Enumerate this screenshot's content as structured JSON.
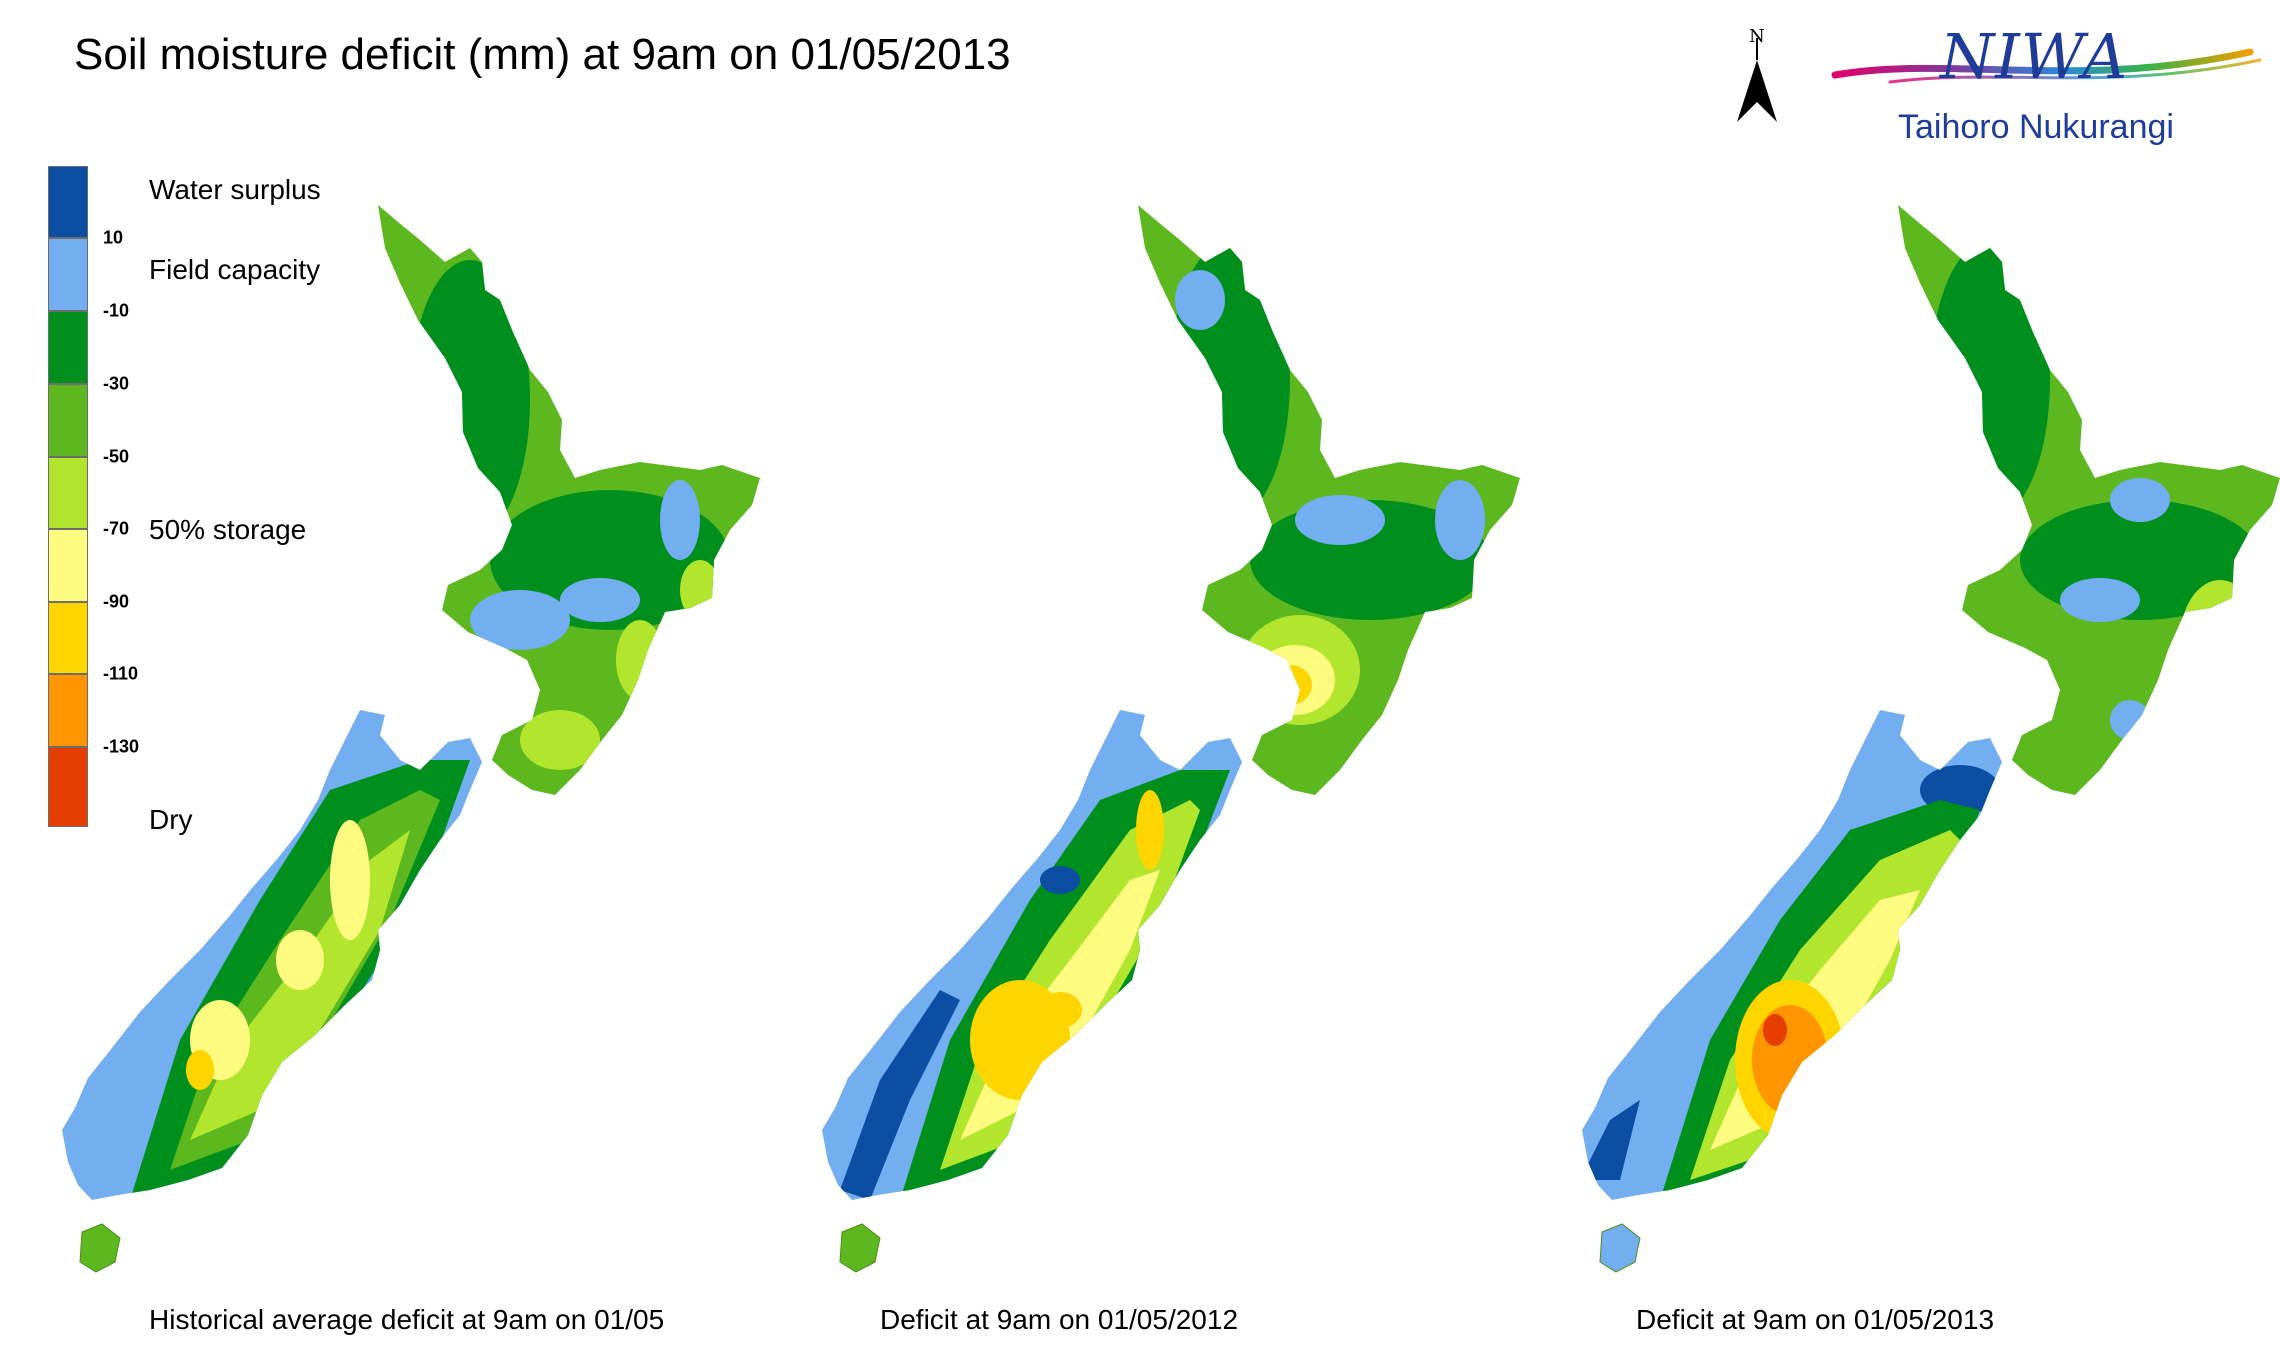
{
  "title": "Soil moisture deficit (mm) at  9am on 01/05/2013",
  "legend": {
    "colors": [
      "#0b4ea2",
      "#72aef0",
      "#008f1d",
      "#5cb81e",
      "#b2e62e",
      "#fffb80",
      "#ffd500",
      "#ff9500",
      "#e63d00"
    ],
    "ticks": [
      "10",
      "-10",
      "-30",
      "-50",
      "-70",
      "-90",
      "-110",
      "-130"
    ],
    "labels": {
      "water_surplus": "Water surplus",
      "field_capacity": "Field capacity",
      "storage": "50% storage",
      "dry": "Dry"
    }
  },
  "north_arrow": {
    "label": "N",
    "icon": "north-arrow-icon"
  },
  "logo": {
    "name": "NIWA",
    "subtitle": "Taihoro Nukurangi"
  },
  "maps": [
    {
      "caption": "Historical average deficit at  9am on 01/05"
    },
    {
      "caption": "Deficit at  9am on 01/05/2012"
    },
    {
      "caption": "Deficit at  9am on 01/05/2013"
    }
  ]
}
